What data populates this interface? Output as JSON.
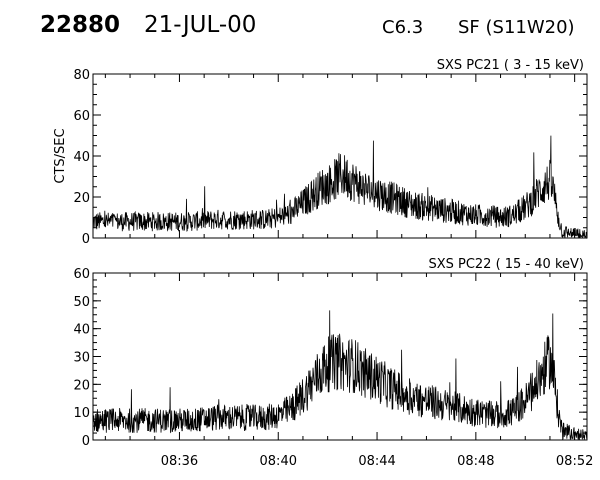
{
  "header": {
    "event_number": "22880",
    "date": "21-JUL-00",
    "flare_class": "C6.3",
    "flare_location": "SF (S11W20)"
  },
  "colors": {
    "line": "#000000",
    "background": "#ffffff"
  },
  "chart_data": [
    {
      "type": "line",
      "title": "SXS PC21  (  3 - 15 keV)",
      "ylabel": "CTS/SEC",
      "xlabel": "",
      "ylim": [
        0,
        80
      ],
      "yticks": [
        0,
        20,
        40,
        60,
        80
      ],
      "xlim": [
        "08:32:30",
        "08:52:30"
      ],
      "xtick_labels": [],
      "grid": false,
      "series": [
        {
          "x": [
            "08:32:30",
            "08:33:30",
            "08:34:30",
            "08:35:30",
            "08:36:30",
            "08:37:30",
            "08:38:30",
            "08:39:30",
            "08:40:00",
            "08:40:30",
            "08:41:00",
            "08:41:30",
            "08:41:45",
            "08:42:00",
            "08:42:15",
            "08:42:30",
            "08:42:45",
            "08:43:00",
            "08:43:15",
            "08:43:30",
            "08:44:00",
            "08:44:30",
            "08:45:00",
            "08:45:30",
            "08:46:00",
            "08:46:30",
            "08:47:00",
            "08:47:30",
            "08:48:00",
            "08:48:30",
            "08:49:00",
            "08:49:30",
            "08:50:00",
            "08:50:15",
            "08:50:30",
            "08:50:45",
            "08:51:00",
            "08:51:10",
            "08:51:20",
            "08:51:30",
            "08:52:00",
            "08:52:30"
          ],
          "y": [
            8,
            8,
            8,
            8,
            8,
            9,
            9,
            9,
            10,
            12,
            17,
            22,
            25,
            26,
            28,
            31,
            30,
            28,
            26,
            24,
            22,
            20,
            18,
            16,
            15,
            14,
            13,
            12,
            11,
            11,
            10,
            11,
            15,
            18,
            22,
            25,
            28,
            22,
            10,
            3,
            2,
            1
          ]
        }
      ]
    },
    {
      "type": "line",
      "title": "SXS PC22  ( 15 - 40 keV)",
      "ylabel": "",
      "xlabel": "",
      "ylim": [
        0,
        60
      ],
      "yticks": [
        0,
        10,
        20,
        30,
        40,
        50,
        60
      ],
      "xlim": [
        "08:32:30",
        "08:52:30"
      ],
      "xtick_labels": [
        "08:36",
        "08:40",
        "08:44",
        "08:48",
        "08:52"
      ],
      "grid": false,
      "series": [
        {
          "x": [
            "08:32:30",
            "08:33:30",
            "08:34:30",
            "08:35:30",
            "08:36:30",
            "08:37:30",
            "08:38:30",
            "08:39:30",
            "08:40:00",
            "08:40:30",
            "08:41:00",
            "08:41:30",
            "08:41:45",
            "08:42:00",
            "08:42:15",
            "08:42:30",
            "08:42:45",
            "08:43:00",
            "08:43:15",
            "08:43:30",
            "08:44:00",
            "08:44:30",
            "08:45:00",
            "08:45:30",
            "08:46:00",
            "08:46:30",
            "08:47:00",
            "08:47:30",
            "08:48:00",
            "08:48:30",
            "08:49:00",
            "08:49:30",
            "08:50:00",
            "08:50:15",
            "08:50:30",
            "08:50:45",
            "08:51:00",
            "08:51:10",
            "08:51:20",
            "08:51:30",
            "08:52:00",
            "08:52:30"
          ],
          "y": [
            7,
            7,
            7,
            7,
            7,
            8,
            8,
            8,
            9,
            11,
            16,
            22,
            25,
            27,
            28,
            28,
            27,
            27,
            26,
            24,
            22,
            19,
            17,
            15,
            14,
            13,
            12,
            11,
            10,
            9,
            9,
            10,
            14,
            17,
            21,
            25,
            29,
            22,
            10,
            3,
            2,
            1
          ]
        }
      ]
    }
  ]
}
